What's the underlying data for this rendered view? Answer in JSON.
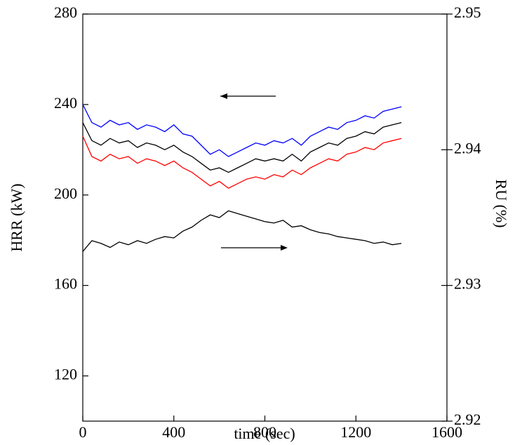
{
  "chart_data": {
    "type": "line",
    "xlabel": "time (sec)",
    "ylabel": "HRR (kW)",
    "y2label": "RU (%)",
    "x": [
      0,
      40,
      80,
      120,
      160,
      200,
      240,
      280,
      320,
      360,
      400,
      440,
      480,
      520,
      560,
      600,
      640,
      680,
      720,
      760,
      800,
      840,
      880,
      920,
      960,
      1000,
      1040,
      1080,
      1120,
      1160,
      1200,
      1240,
      1280,
      1320,
      1360,
      1400
    ],
    "series": [
      {
        "color": "#0000ff",
        "values": [
          240,
          232,
          230,
          233,
          231,
          232,
          229,
          231,
          230,
          228,
          231,
          227,
          226,
          222,
          218,
          220,
          217,
          219,
          221,
          223,
          222,
          224,
          223,
          225,
          222,
          226,
          228,
          230,
          229,
          232,
          233,
          235,
          234,
          237,
          238,
          239
        ]
      },
      {
        "color": "#000000",
        "values": [
          232,
          224,
          222,
          225,
          223,
          224,
          221,
          223,
          222,
          220,
          222,
          219,
          217,
          214,
          211,
          212,
          210,
          212,
          214,
          216,
          215,
          216,
          215,
          218,
          215,
          219,
          221,
          223,
          222,
          225,
          226,
          228,
          227,
          230,
          231,
          232
        ]
      },
      {
        "color": "#ff0000",
        "values": [
          226,
          217,
          215,
          218,
          216,
          217,
          214,
          216,
          215,
          213,
          215,
          212,
          210,
          207,
          204,
          206,
          203,
          205,
          207,
          208,
          207,
          209,
          208,
          211,
          209,
          212,
          214,
          216,
          215,
          218,
          219,
          221,
          220,
          223,
          224,
          225
        ]
      },
      {
        "color": "#000000",
        "axis": "y2",
        "values": [
          2.9325,
          2.9333,
          2.9331,
          2.9328,
          2.9332,
          2.933,
          2.9333,
          2.9331,
          2.9334,
          2.9336,
          2.9335,
          2.934,
          2.9343,
          2.9348,
          2.9352,
          2.935,
          2.9355,
          2.9353,
          2.9351,
          2.9349,
          2.9347,
          2.9346,
          2.9348,
          2.9343,
          2.9344,
          2.9341,
          2.9339,
          2.9338,
          2.9336,
          2.9335,
          2.9334,
          2.9333,
          2.9331,
          2.9332,
          2.933,
          2.9331
        ]
      }
    ],
    "xlim": [
      0,
      1600
    ],
    "xticks": [
      0,
      400,
      800,
      1200,
      1600
    ],
    "ylim": [
      100,
      280
    ],
    "yticks": [
      120,
      160,
      200,
      240,
      280
    ],
    "y2lim": [
      2.92,
      2.95
    ],
    "y2ticks": [
      2.92,
      2.93,
      2.94,
      2.95
    ]
  }
}
